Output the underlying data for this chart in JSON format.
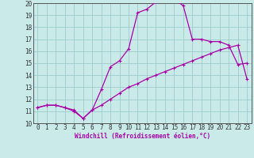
{
  "xlabel": "Windchill (Refroidissement éolien,°C)",
  "xlim": [
    -0.5,
    23.5
  ],
  "ylim": [
    10,
    20
  ],
  "yticks": [
    10,
    11,
    12,
    13,
    14,
    15,
    16,
    17,
    18,
    19,
    20
  ],
  "xticks": [
    0,
    1,
    2,
    3,
    4,
    5,
    6,
    7,
    8,
    9,
    10,
    11,
    12,
    13,
    14,
    15,
    16,
    17,
    18,
    19,
    20,
    21,
    22,
    23
  ],
  "bg_color": "#caeaea",
  "line_color": "#aa00aa",
  "grid_color": "#99cccc",
  "curve1_x": [
    0,
    1,
    2,
    3,
    4,
    5,
    6,
    7,
    8,
    9,
    10,
    11,
    12,
    13,
    14,
    15,
    16,
    17,
    18,
    19,
    20,
    21,
    22,
    23
  ],
  "curve1_y": [
    11.3,
    11.5,
    11.5,
    11.3,
    11.0,
    10.4,
    11.1,
    11.5,
    12.0,
    12.5,
    13.0,
    13.3,
    13.7,
    14.0,
    14.3,
    14.6,
    14.9,
    15.2,
    15.5,
    15.8,
    16.1,
    16.3,
    16.5,
    13.7
  ],
  "curve2_x": [
    0,
    1,
    2,
    3,
    4,
    5,
    6,
    7,
    8,
    9,
    10,
    11,
    12,
    13,
    14,
    15,
    16,
    17,
    18,
    19,
    20,
    21,
    22,
    23
  ],
  "curve2_y": [
    11.3,
    11.5,
    11.5,
    11.3,
    11.1,
    10.4,
    11.1,
    12.8,
    14.7,
    15.2,
    16.2,
    19.2,
    19.5,
    20.1,
    20.3,
    20.3,
    19.8,
    17.0,
    17.0,
    16.8,
    16.8,
    16.5,
    14.9,
    15.0
  ],
  "xlabel_fontsize": 5.5,
  "tick_fontsize": 5.5,
  "linewidth": 0.9,
  "markersize": 2.5
}
